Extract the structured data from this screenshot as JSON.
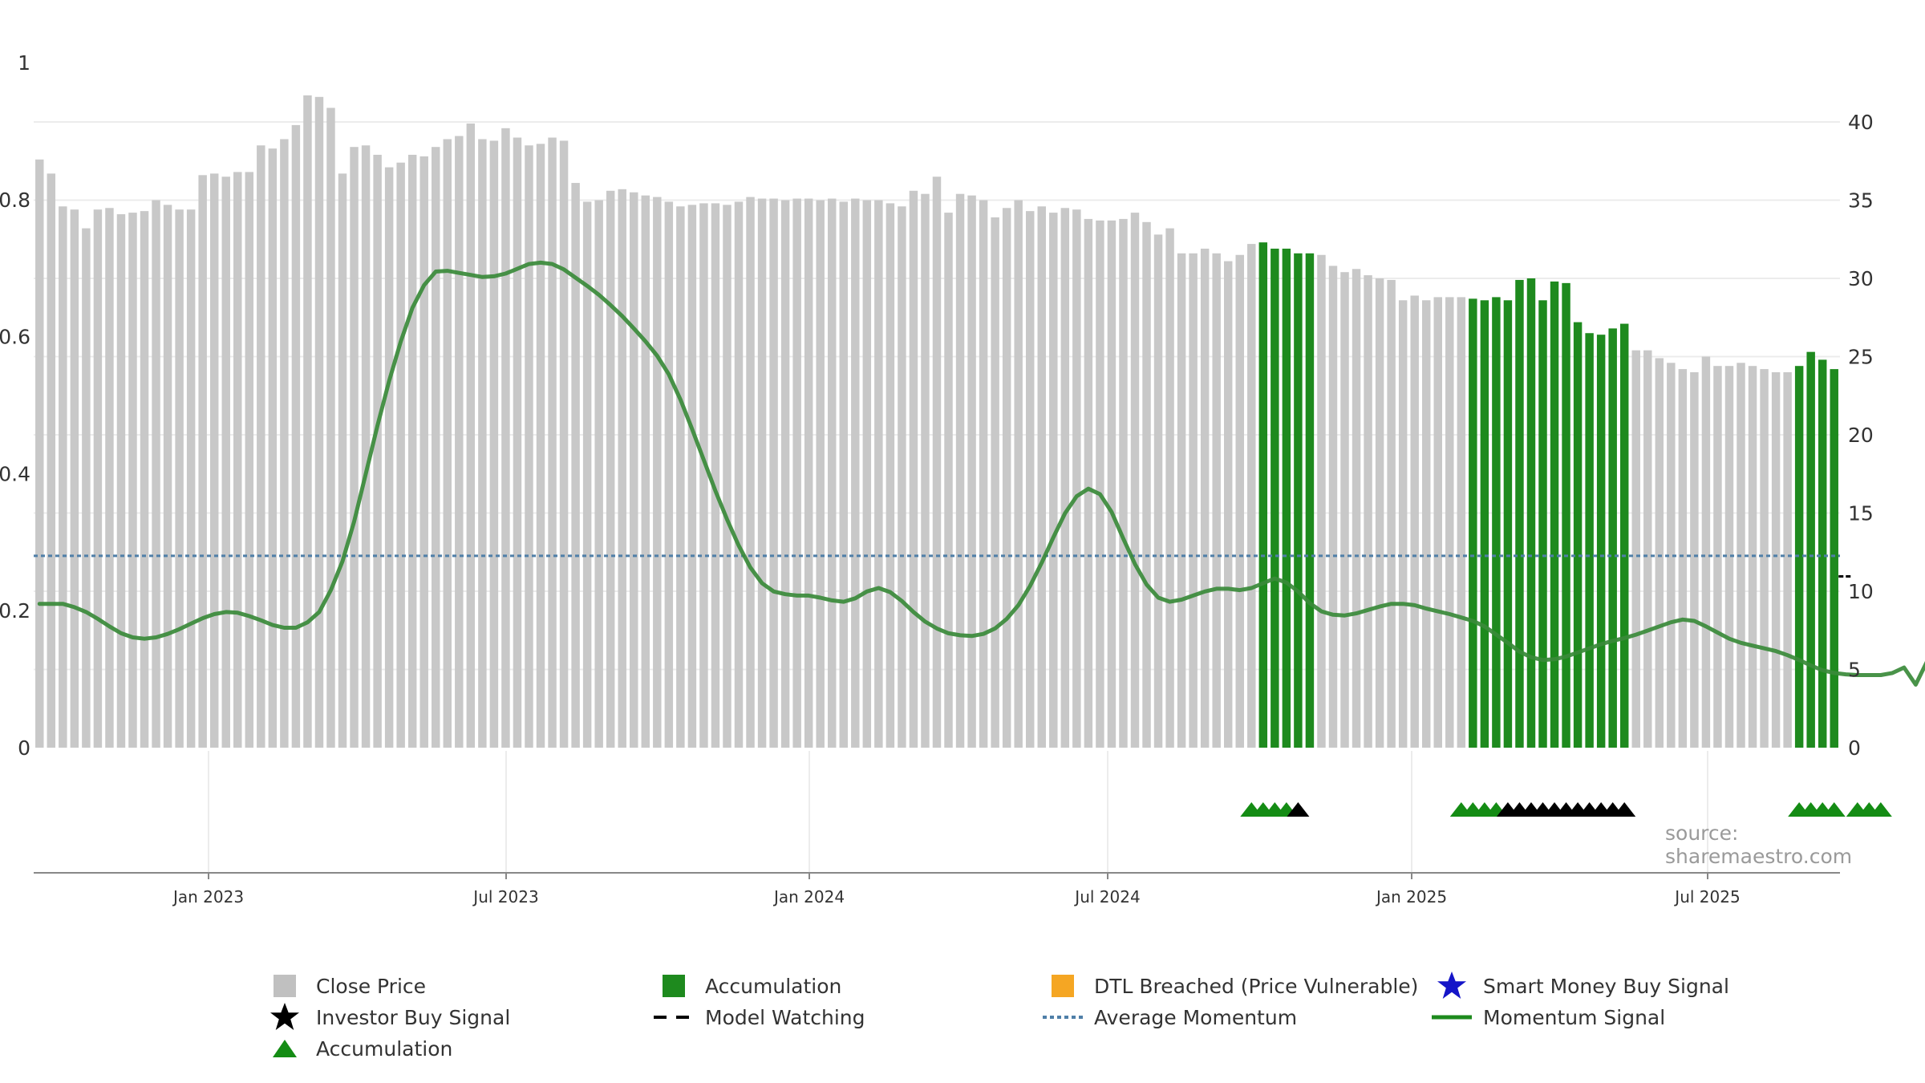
{
  "chart_data": {
    "type": "bar",
    "x_ticks": [
      "Jan 2023",
      "Jul 2023",
      "Jan 2024",
      "Jul 2024",
      "Jan 2025",
      "Jul 2025"
    ],
    "y_left_ticks": [
      "0",
      "0.2",
      "0.4",
      "0.6",
      "0.8",
      "1"
    ],
    "y_right_ticks": [
      "0",
      "5",
      "10",
      "15",
      "20",
      "25",
      "30",
      "35",
      "40"
    ],
    "y_left_range": [
      0,
      1
    ],
    "y_right_range": [
      0,
      42
    ],
    "average_momentum": 0.28,
    "close_price": [
      37.6,
      36.7,
      34.6,
      34.4,
      33.2,
      34.4,
      34.5,
      34.1,
      34.2,
      34.3,
      35.0,
      34.7,
      34.4,
      34.4,
      36.6,
      36.7,
      36.5,
      36.8,
      36.8,
      38.5,
      38.3,
      38.9,
      39.8,
      41.7,
      41.6,
      40.9,
      36.7,
      38.4,
      38.5,
      37.9,
      37.1,
      37.4,
      37.9,
      37.8,
      38.4,
      38.9,
      39.1,
      39.9,
      38.9,
      38.8,
      39.6,
      39.0,
      38.5,
      38.6,
      39.0,
      38.8,
      36.1,
      34.9,
      35.0,
      35.6,
      35.7,
      35.5,
      35.3,
      35.2,
      34.9,
      34.6,
      34.7,
      34.8,
      34.8,
      34.7,
      34.9,
      35.2,
      35.1,
      35.1,
      35.0,
      35.1,
      35.1,
      35.0,
      35.1,
      34.9,
      35.1,
      35.0,
      35.0,
      34.8,
      34.6,
      35.6,
      35.4,
      36.5,
      34.2,
      35.4,
      35.3,
      35.0,
      33.9,
      34.5,
      35.0,
      34.3,
      34.6,
      34.2,
      34.5,
      34.4,
      33.8,
      33.7,
      33.7,
      33.8,
      34.2,
      33.6,
      32.8,
      33.2,
      31.6,
      31.6,
      31.9,
      31.6,
      31.1,
      31.5,
      32.2,
      32.3,
      31.9,
      31.9,
      31.6,
      31.6,
      31.5,
      30.8,
      30.4,
      30.6,
      30.2,
      30.0,
      29.9,
      28.6,
      28.9,
      28.6,
      28.8,
      28.8,
      28.8,
      28.7,
      28.6,
      28.8,
      28.6,
      29.9,
      30.0,
      28.6,
      29.8,
      29.7,
      27.2,
      26.5,
      26.4,
      26.8,
      27.1,
      25.4,
      25.4,
      24.9,
      24.6,
      24.2,
      24.0,
      25.0,
      24.4,
      24.4,
      24.6,
      24.4,
      24.2,
      24.0,
      24.0,
      24.4,
      25.3,
      24.8,
      24.2
    ],
    "accumulation_bars": [
      105,
      106,
      107,
      108,
      109,
      123,
      124,
      125,
      126,
      127,
      128,
      129,
      130,
      131,
      132,
      133,
      134,
      135,
      136,
      151,
      152,
      153,
      154,
      155,
      156
    ],
    "momentum_signal": [
      0.21,
      0.21,
      0.21,
      0.205,
      0.198,
      0.188,
      0.177,
      0.167,
      0.161,
      0.159,
      0.161,
      0.166,
      0.173,
      0.181,
      0.189,
      0.195,
      0.198,
      0.197,
      0.192,
      0.186,
      0.179,
      0.175,
      0.175,
      0.183,
      0.198,
      0.23,
      0.272,
      0.33,
      0.4,
      0.47,
      0.535,
      0.593,
      0.642,
      0.675,
      0.695,
      0.696,
      0.693,
      0.69,
      0.687,
      0.688,
      0.692,
      0.699,
      0.706,
      0.708,
      0.706,
      0.698,
      0.686,
      0.674,
      0.661,
      0.646,
      0.63,
      0.612,
      0.593,
      0.572,
      0.545,
      0.508,
      0.465,
      0.42,
      0.375,
      0.333,
      0.295,
      0.263,
      0.24,
      0.228,
      0.224,
      0.222,
      0.222,
      0.219,
      0.215,
      0.213,
      0.218,
      0.228,
      0.233,
      0.227,
      0.214,
      0.198,
      0.184,
      0.174,
      0.167,
      0.164,
      0.163,
      0.166,
      0.174,
      0.188,
      0.208,
      0.236,
      0.27,
      0.307,
      0.342,
      0.367,
      0.378,
      0.37,
      0.344,
      0.305,
      0.268,
      0.238,
      0.219,
      0.213,
      0.216,
      0.222,
      0.228,
      0.232,
      0.232,
      0.23,
      0.233,
      0.24,
      0.247,
      0.241,
      0.228,
      0.211,
      0.199,
      0.194,
      0.193,
      0.196,
      0.201,
      0.206,
      0.21,
      0.21,
      0.208,
      0.203,
      0.199,
      0.195,
      0.19,
      0.185,
      0.177,
      0.165,
      0.153,
      0.14,
      0.132,
      0.128,
      0.129,
      0.133,
      0.139,
      0.145,
      0.151,
      0.156,
      0.16,
      0.165,
      0.171,
      0.177,
      0.183,
      0.187,
      0.185,
      0.177,
      0.168,
      0.159,
      0.153,
      0.149,
      0.145,
      0.141,
      0.135,
      0.128,
      0.12,
      0.113,
      0.109,
      0.107,
      0.106,
      0.106,
      0.106,
      0.109,
      0.117,
      0.092,
      0.127,
      0.14,
      0.14
    ],
    "accumulation_markers": [
      104,
      105,
      106,
      107,
      122,
      123,
      124,
      125,
      151,
      152,
      153,
      154,
      156,
      157,
      158
    ],
    "investor_markers": [
      108,
      126,
      127,
      128,
      129,
      130,
      131,
      132,
      133,
      134,
      135,
      136
    ],
    "model_watching_marker": {
      "index": 155,
      "value": 0.25
    },
    "colors": {
      "close_price": "#c8c8c8",
      "accumulation": "#1e8a1e",
      "momentum": "#3a8a3a",
      "average_momentum": "#4f7fa8",
      "accumulation_marker": "#148c14",
      "investor_marker": "#000000",
      "dtl": "#f5a623",
      "smart_money": "#1515c8"
    }
  },
  "source_text": "source: sharemaestro.com",
  "legend": {
    "close_price": "Close Price",
    "accumulation_bar": "Accumulation",
    "dtl": "DTL Breached (Price Vulnerable)",
    "smart_money": "Smart Money Buy Signal",
    "investor_buy": "Investor Buy Signal",
    "model_watching": "Model Watching",
    "average_momentum": "Average Momentum",
    "momentum_signal": "Momentum Signal",
    "accumulation_marker": "Accumulation"
  }
}
